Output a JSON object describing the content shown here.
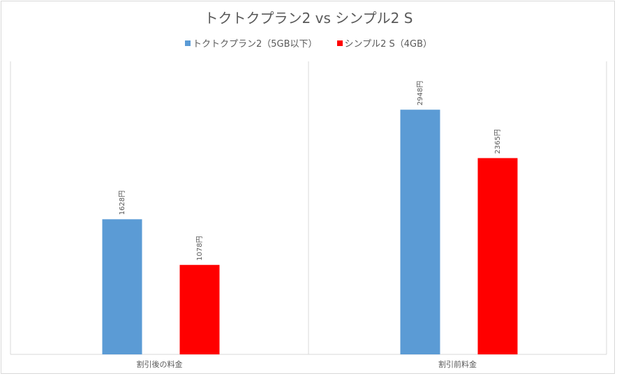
{
  "chart_data": {
    "type": "bar",
    "title": "トクトクプラン2 vs シンプル2 S",
    "categories": [
      "割引後の料金",
      "割引前料金"
    ],
    "series": [
      {
        "name": "トクトクプラン2（5GB以下）",
        "color": "#5B9BD5",
        "values": [
          1628,
          2948
        ],
        "labels": [
          "1628円",
          "2948円"
        ]
      },
      {
        "name": "シンプル2 S（4GB）",
        "color": "#FF0000",
        "values": [
          1078,
          2365
        ],
        "labels": [
          "1078円",
          "2365円"
        ]
      }
    ],
    "xlabel": "",
    "ylabel": "",
    "ylim": [
      0,
      3530
    ],
    "grid": false,
    "legend": "top"
  }
}
